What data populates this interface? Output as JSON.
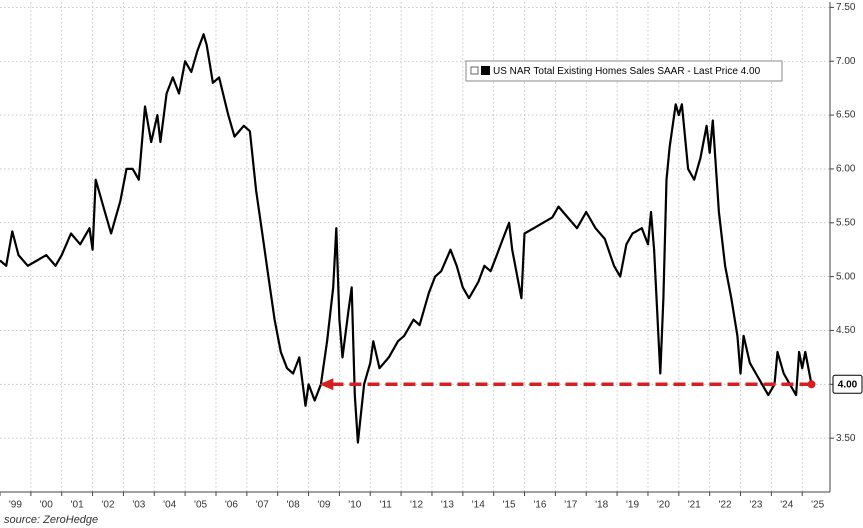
{
  "chart_data": {
    "type": "line",
    "source": "source: ZeroHedge",
    "series": [
      {
        "name": "US NAR Total Existing Homes Sales SAAR - Last Price 4.00",
        "color": "#000000",
        "x": [
          1999.0,
          1999.2,
          1999.4,
          1999.6,
          1999.9,
          2000.2,
          2000.5,
          2000.8,
          2001.0,
          2001.3,
          2001.6,
          2001.9,
          2002.0,
          2002.1,
          2002.4,
          2002.6,
          2002.9,
          2003.1,
          2003.3,
          2003.5,
          2003.7,
          2003.9,
          2004.1,
          2004.2,
          2004.4,
          2004.6,
          2004.8,
          2005.0,
          2005.2,
          2005.4,
          2005.6,
          2005.7,
          2005.9,
          2006.1,
          2006.4,
          2006.6,
          2006.9,
          2007.1,
          2007.3,
          2007.5,
          2007.7,
          2007.9,
          2008.1,
          2008.3,
          2008.5,
          2008.7,
          2008.9,
          2009.0,
          2009.2,
          2009.4,
          2009.6,
          2009.8,
          2009.9,
          2010.0,
          2010.1,
          2010.3,
          2010.4,
          2010.5,
          2010.6,
          2010.8,
          2011.0,
          2011.1,
          2011.3,
          2011.6,
          2011.9,
          2012.1,
          2012.4,
          2012.6,
          2012.9,
          2013.1,
          2013.3,
          2013.6,
          2013.8,
          2014.0,
          2014.2,
          2014.5,
          2014.7,
          2014.9,
          2015.1,
          2015.3,
          2015.5,
          2015.6,
          2015.9,
          2016.0,
          2016.3,
          2016.6,
          2016.9,
          2017.1,
          2017.4,
          2017.7,
          2018.0,
          2018.3,
          2018.6,
          2018.9,
          2019.1,
          2019.3,
          2019.5,
          2019.8,
          2020.0,
          2020.1,
          2020.2,
          2020.4,
          2020.5,
          2020.6,
          2020.7,
          2020.9,
          2021.0,
          2021.1,
          2021.3,
          2021.5,
          2021.7,
          2021.9,
          2022.0,
          2022.1,
          2022.3,
          2022.5,
          2022.7,
          2022.9,
          2023.0,
          2023.1,
          2023.3,
          2023.5,
          2023.7,
          2023.9,
          2024.1,
          2024.2,
          2024.4,
          2024.6,
          2024.8,
          2024.9,
          2025.0,
          2025.1,
          2025.3
        ],
        "values": [
          5.15,
          5.1,
          5.42,
          5.2,
          5.1,
          5.15,
          5.2,
          5.1,
          5.2,
          5.4,
          5.3,
          5.45,
          5.25,
          5.9,
          5.6,
          5.4,
          5.7,
          6.0,
          6.0,
          5.9,
          6.58,
          6.25,
          6.5,
          6.25,
          6.7,
          6.85,
          6.7,
          7.0,
          6.9,
          7.1,
          7.25,
          7.15,
          6.8,
          6.85,
          6.5,
          6.3,
          6.4,
          6.35,
          5.8,
          5.4,
          5.0,
          4.6,
          4.3,
          4.15,
          4.1,
          4.25,
          3.8,
          4.0,
          3.85,
          4.0,
          4.4,
          4.9,
          5.45,
          4.6,
          4.25,
          4.7,
          4.9,
          3.9,
          3.46,
          4.0,
          4.2,
          4.4,
          4.15,
          4.25,
          4.4,
          4.45,
          4.6,
          4.55,
          4.85,
          5.0,
          5.05,
          5.25,
          5.1,
          4.9,
          4.8,
          4.95,
          5.1,
          5.05,
          5.2,
          5.35,
          5.5,
          5.25,
          4.8,
          5.4,
          5.45,
          5.5,
          5.55,
          5.65,
          5.55,
          5.45,
          5.6,
          5.45,
          5.35,
          5.1,
          5.0,
          5.3,
          5.4,
          5.45,
          5.3,
          5.6,
          5.25,
          4.1,
          4.8,
          5.9,
          6.2,
          6.6,
          6.5,
          6.6,
          6.0,
          5.9,
          6.1,
          6.4,
          6.15,
          6.45,
          5.6,
          5.1,
          4.8,
          4.45,
          4.1,
          4.45,
          4.2,
          4.1,
          4.0,
          3.9,
          4.0,
          4.3,
          4.1,
          4.0,
          3.9,
          4.3,
          4.15,
          4.3,
          4.0
        ]
      }
    ],
    "last_price_label": {
      "value": 4.0,
      "label": "4.00"
    },
    "xlim": [
      1999.0,
      2025.9
    ],
    "ylim": [
      3.0,
      7.55
    ],
    "xticks": [
      {
        "value": 1999,
        "label": "'99"
      },
      {
        "value": 2000,
        "label": "'00"
      },
      {
        "value": 2001,
        "label": "'01"
      },
      {
        "value": 2002,
        "label": "'02"
      },
      {
        "value": 2003,
        "label": "'03"
      },
      {
        "value": 2004,
        "label": "'04"
      },
      {
        "value": 2005,
        "label": "'05"
      },
      {
        "value": 2006,
        "label": "'06"
      },
      {
        "value": 2007,
        "label": "'07"
      },
      {
        "value": 2008,
        "label": "'08"
      },
      {
        "value": 2009,
        "label": "'09"
      },
      {
        "value": 2010,
        "label": "'10"
      },
      {
        "value": 2011,
        "label": "'11"
      },
      {
        "value": 2012,
        "label": "'12"
      },
      {
        "value": 2013,
        "label": "'13"
      },
      {
        "value": 2014,
        "label": "'14"
      },
      {
        "value": 2015,
        "label": "'15"
      },
      {
        "value": 2016,
        "label": "'16"
      },
      {
        "value": 2017,
        "label": "'17"
      },
      {
        "value": 2018,
        "label": "'18"
      },
      {
        "value": 2019,
        "label": "'19"
      },
      {
        "value": 2020,
        "label": "'20"
      },
      {
        "value": 2021,
        "label": "'21"
      },
      {
        "value": 2022,
        "label": "'22"
      },
      {
        "value": 2023,
        "label": "'23"
      },
      {
        "value": 2024,
        "label": "'24"
      },
      {
        "value": 2025,
        "label": "'25"
      }
    ],
    "yticks": [
      {
        "value": 3.5,
        "label": "3.50"
      },
      {
        "value": 4.0,
        "label": "4.00"
      },
      {
        "value": 4.5,
        "label": "4.50"
      },
      {
        "value": 5.0,
        "label": "5.00"
      },
      {
        "value": 5.5,
        "label": "5.50"
      },
      {
        "value": 6.0,
        "label": "6.00"
      },
      {
        "value": 6.5,
        "label": "6.50"
      },
      {
        "value": 7.0,
        "label": "7.00"
      },
      {
        "value": 7.5,
        "label": "7.50"
      }
    ],
    "grid": true,
    "annotation_color": "#d42020"
  }
}
